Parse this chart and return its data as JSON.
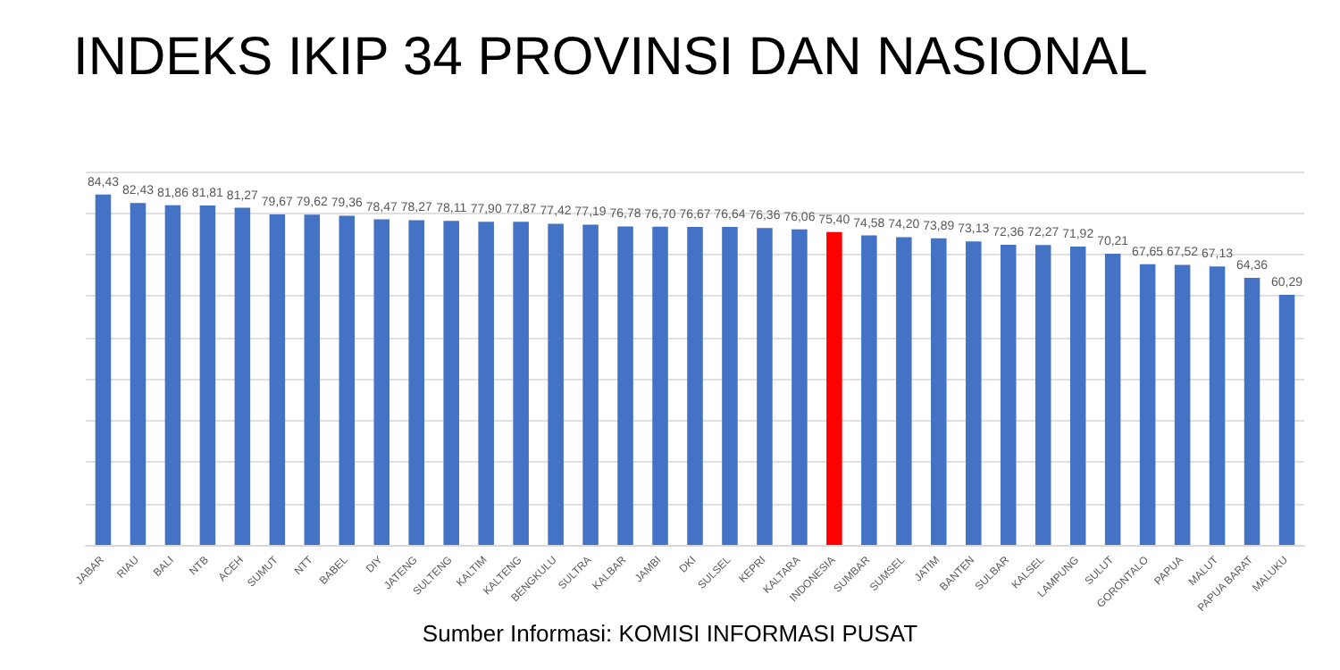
{
  "chart_data": {
    "type": "bar",
    "title": "INDEKS IKIP 34 PROVINSI DAN NASIONAL",
    "categories": [
      "JABAR",
      "RIAU",
      "BALI",
      "NTB",
      "ACEH",
      "SUMUT",
      "NTT",
      "BABEL",
      "DIY",
      "JATENG",
      "SULTENG",
      "KALTIM",
      "KALTENG",
      "BENGKULU",
      "SULTRA",
      "KALBAR",
      "JAMBI",
      "DKI",
      "SULSEL",
      "KEPRI",
      "KALTARA",
      "INDONESIA",
      "SUMBAR",
      "SUMSEL",
      "JATIM",
      "BANTEN",
      "SULBAR",
      "KALSEL",
      "LAMPUNG",
      "SULUT",
      "GORONTALO",
      "PAPUA",
      "MALUT",
      "PAPUA BARAT",
      "MALUKU"
    ],
    "values": [
      84.43,
      82.43,
      81.86,
      81.81,
      81.27,
      79.67,
      79.62,
      79.36,
      78.47,
      78.27,
      78.11,
      77.9,
      77.87,
      77.42,
      77.19,
      76.78,
      76.7,
      76.67,
      76.64,
      76.36,
      76.06,
      75.4,
      74.58,
      74.2,
      73.89,
      73.13,
      72.36,
      72.27,
      71.92,
      70.21,
      67.65,
      67.52,
      67.13,
      64.36,
      60.29
    ],
    "value_labels": [
      "84,43",
      "82,43",
      "81,86",
      "81,81",
      "81,27",
      "79,67",
      "79,62",
      "79,36",
      "78,47",
      "78,27",
      "78,11",
      "77,90",
      "77,87",
      "77,42",
      "77,19",
      "76,78",
      "76,70",
      "76,67",
      "76,64",
      "76,36",
      "76,06",
      "75,40",
      "74,58",
      "74,20",
      "73,89",
      "73,13",
      "72,36",
      "72,27",
      "71,92",
      "70,21",
      "67,65",
      "67,52",
      "67,13",
      "64,36",
      "60,29"
    ],
    "colors": [
      "#4472c4",
      "#4472c4",
      "#4472c4",
      "#4472c4",
      "#4472c4",
      "#4472c4",
      "#4472c4",
      "#4472c4",
      "#4472c4",
      "#4472c4",
      "#4472c4",
      "#4472c4",
      "#4472c4",
      "#4472c4",
      "#4472c4",
      "#4472c4",
      "#4472c4",
      "#4472c4",
      "#4472c4",
      "#4472c4",
      "#4472c4",
      "#ff0000",
      "#4472c4",
      "#4472c4",
      "#4472c4",
      "#4472c4",
      "#4472c4",
      "#4472c4",
      "#4472c4",
      "#4472c4",
      "#4472c4",
      "#4472c4",
      "#4472c4",
      "#4472c4",
      "#4472c4"
    ],
    "ylim": [
      0,
      90
    ],
    "yticks": [
      {
        "value": 0,
        "label": null
      },
      {
        "value": 10,
        "label": null
      },
      {
        "value": 20,
        "label": null
      },
      {
        "value": 30,
        "label": null
      },
      {
        "value": 40,
        "label": null
      },
      {
        "value": 50,
        "label": null
      },
      {
        "value": 60,
        "label": null
      },
      {
        "value": 70,
        "label": null
      },
      {
        "value": 80,
        "label": null
      },
      {
        "value": 90,
        "label": null
      }
    ],
    "tick_labels": "x",
    "grid": "y",
    "annotations": [
      "Sumber Informasi: KOMISI INFORMASI PUSAT"
    ]
  }
}
